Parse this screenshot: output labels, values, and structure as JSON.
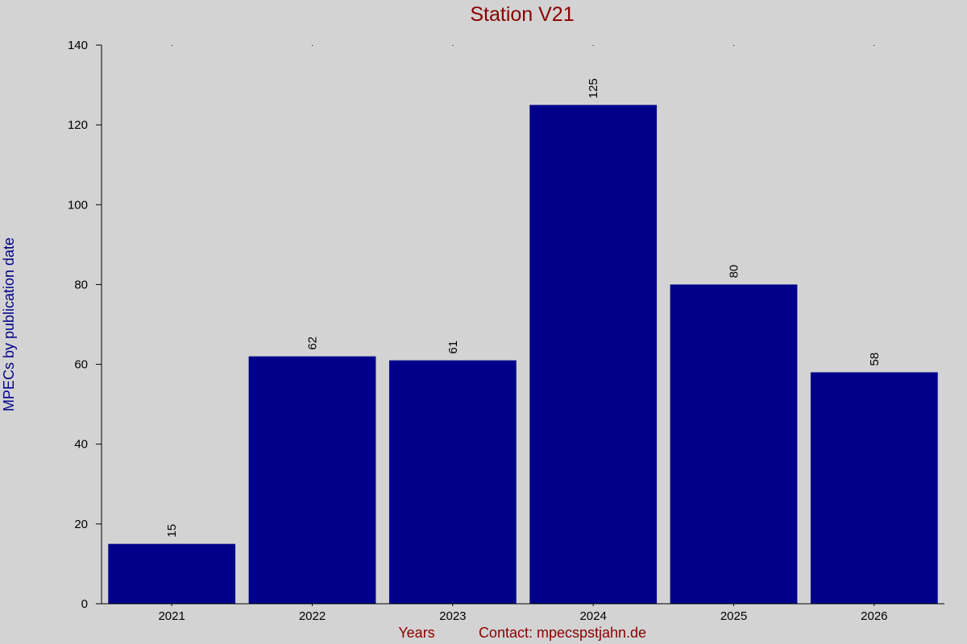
{
  "chart_data": {
    "type": "bar",
    "title": "Station V21",
    "xlabel": "Years",
    "ylabel": "MPECs by publication date",
    "footer_note": "Contact: mpecspstjahn.de",
    "categories": [
      "2021",
      "2022",
      "2023",
      "2024",
      "2025",
      "2026"
    ],
    "values": [
      15,
      62,
      61,
      125,
      80,
      58
    ],
    "value_labels": [
      "15",
      "62",
      "61",
      "125",
      "80",
      "58"
    ],
    "yticks": [
      0,
      20,
      40,
      60,
      80,
      100,
      120,
      140
    ],
    "ylim": [
      0,
      140
    ],
    "grid": false,
    "colors": {
      "bar": "#00008b",
      "title": "#8b0000",
      "footer": "#8b0000",
      "ylabel": "#00008b",
      "axis": "#000000",
      "background": "#d3d3d3"
    }
  }
}
